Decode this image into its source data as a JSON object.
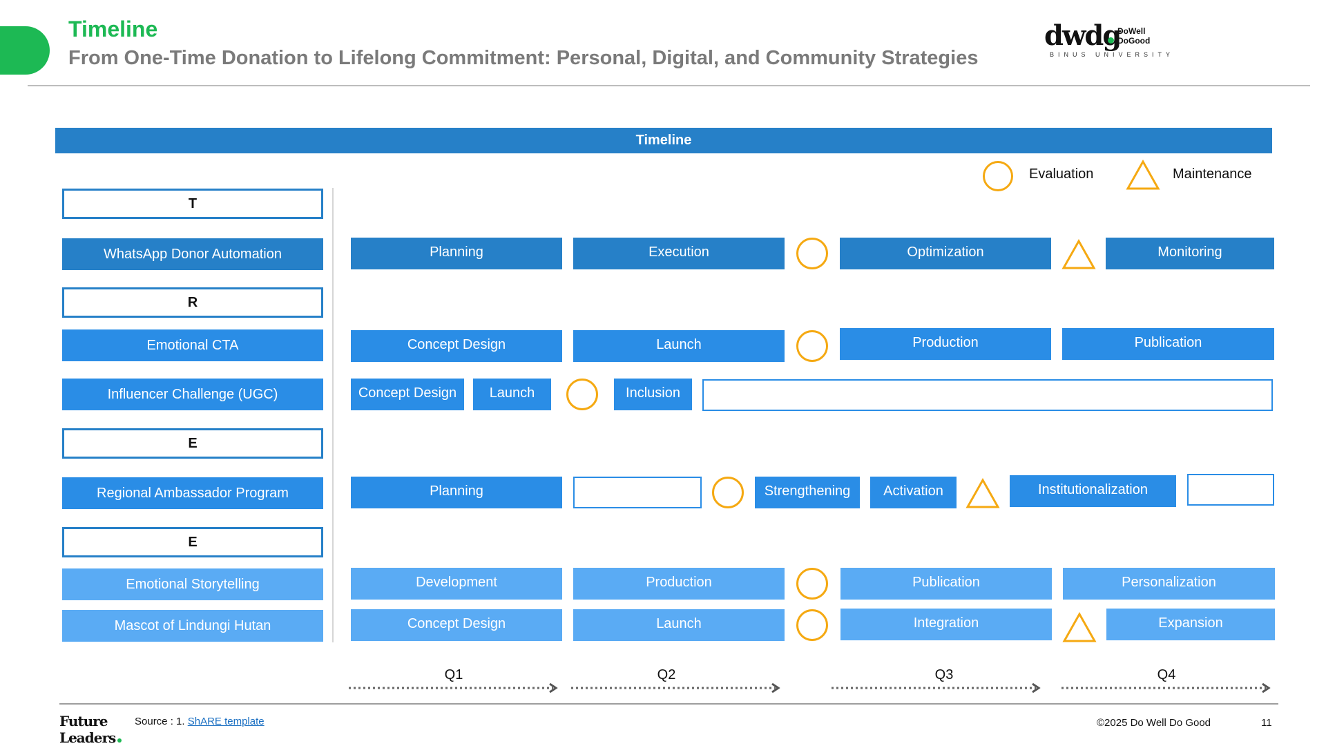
{
  "header": {
    "title": "Timeline",
    "subtitle": "From One-Time Donation to Lifelong Commitment: Personal, Digital, and Community Strategies"
  },
  "logo": {
    "mark": "dwdg",
    "name_line1": "DoWell",
    "name_line2": "DoGood",
    "university": "BINUS UNIVERSITY"
  },
  "banner": {
    "label": "Timeline"
  },
  "legend": {
    "circle_label": "Evaluation",
    "triangle_label": "Maintenance"
  },
  "sections": {
    "t": "T",
    "r": "R",
    "e1": "E",
    "e2": "E"
  },
  "rows": {
    "whatsapp": {
      "label": "WhatsApp Donor Automation",
      "tasks": [
        "Planning",
        "Execution",
        "Optimization",
        "Monitoring"
      ]
    },
    "emotional_cta": {
      "label": "Emotional CTA",
      "tasks": [
        "Concept Design",
        "Launch",
        "Production",
        "Publication"
      ]
    },
    "influencer": {
      "label": "Influencer Challenge (UGC)",
      "tasks": [
        "Concept Design",
        "Launch",
        "Inclusion"
      ]
    },
    "ambassador": {
      "label": "Regional Ambassador Program",
      "tasks": [
        "Planning",
        "Strengthening",
        "Activation",
        "Institutionalization"
      ]
    },
    "storytelling": {
      "label": "Emotional Storytelling",
      "tasks": [
        "Development",
        "Production",
        "Publication",
        "Personalization"
      ]
    },
    "mascot": {
      "label": "Mascot of Lindungi Hutan",
      "tasks": [
        "Concept Design",
        "Launch",
        "Integration",
        "Expansion"
      ]
    }
  },
  "quarters": [
    "Q1",
    "Q2",
    "Q3",
    "Q4"
  ],
  "footer": {
    "brand_line1": "Future",
    "brand_line2": "Leaders",
    "source_prefix": "Source : 1. ",
    "source_link": "ShARE template",
    "copyright": "©2025 Do Well Do Good",
    "page": "11"
  },
  "colors": {
    "accent_green": "#1db954",
    "blue_dark": "#2680c8",
    "blue_mid": "#2a8de6",
    "blue_light": "#5aabf4",
    "marker_orange": "#f5a912"
  }
}
